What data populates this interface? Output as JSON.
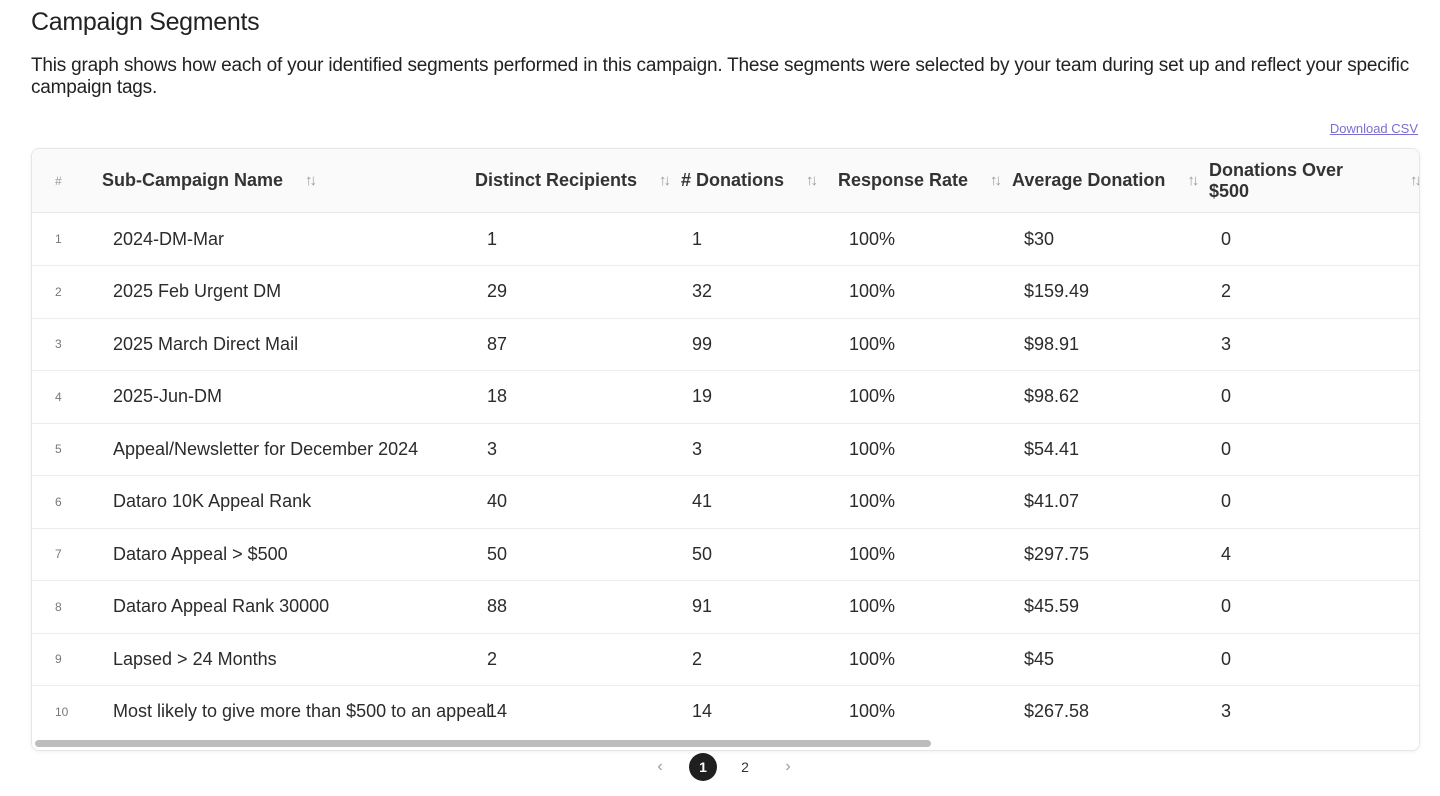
{
  "page": {
    "title": "Campaign Segments",
    "description": "This graph shows how each of your identified segments performed in this campaign. These segments were selected by your team during set up and reflect your specific campaign tags.",
    "download_label": "Download CSV"
  },
  "table": {
    "columns": [
      {
        "key": "index",
        "label": "#"
      },
      {
        "key": "name",
        "label": "Sub-Campaign Name"
      },
      {
        "key": "recipients",
        "label": "Distinct Recipients"
      },
      {
        "key": "donations",
        "label": "# Donations"
      },
      {
        "key": "response_rate",
        "label": "Response Rate"
      },
      {
        "key": "avg_donation",
        "label": "Average Donation"
      },
      {
        "key": "over_500",
        "label": "Donations Over $500"
      }
    ],
    "sort_icon": "sort-arrows-icon",
    "rows": [
      {
        "index": "1",
        "name": "2024-DM-Mar",
        "recipients": "1",
        "donations": "1",
        "response_rate": "100%",
        "avg_donation": "$30",
        "over_500": "0"
      },
      {
        "index": "2",
        "name": "2025 Feb Urgent DM",
        "recipients": "29",
        "donations": "32",
        "response_rate": "100%",
        "avg_donation": "$159.49",
        "over_500": "2"
      },
      {
        "index": "3",
        "name": "2025 March Direct Mail",
        "recipients": "87",
        "donations": "99",
        "response_rate": "100%",
        "avg_donation": "$98.91",
        "over_500": "3"
      },
      {
        "index": "4",
        "name": "2025-Jun-DM",
        "recipients": "18",
        "donations": "19",
        "response_rate": "100%",
        "avg_donation": "$98.62",
        "over_500": "0"
      },
      {
        "index": "5",
        "name": "Appeal/Newsletter for December 2024",
        "recipients": "3",
        "donations": "3",
        "response_rate": "100%",
        "avg_donation": "$54.41",
        "over_500": "0"
      },
      {
        "index": "6",
        "name": "Dataro 10K Appeal Rank",
        "recipients": "40",
        "donations": "41",
        "response_rate": "100%",
        "avg_donation": "$41.07",
        "over_500": "0"
      },
      {
        "index": "7",
        "name": "Dataro Appeal > $500",
        "recipients": "50",
        "donations": "50",
        "response_rate": "100%",
        "avg_donation": "$297.75",
        "over_500": "4"
      },
      {
        "index": "8",
        "name": "Dataro Appeal Rank 30000",
        "recipients": "88",
        "donations": "91",
        "response_rate": "100%",
        "avg_donation": "$45.59",
        "over_500": "0"
      },
      {
        "index": "9",
        "name": "Lapsed > 24 Months",
        "recipients": "2",
        "donations": "2",
        "response_rate": "100%",
        "avg_donation": "$45",
        "over_500": "0"
      },
      {
        "index": "10",
        "name": "Most likely to give more than $500 to an appeal",
        "recipients": "14",
        "donations": "14",
        "response_rate": "100%",
        "avg_donation": "$267.58",
        "over_500": "3"
      }
    ]
  },
  "pagination": {
    "prev_icon": "chevron-left-icon",
    "next_icon": "chevron-right-icon",
    "pages": [
      "1",
      "2"
    ],
    "current_page": "1"
  },
  "colors": {
    "link": "#7a6fd1",
    "active_page": "#1f1f1f"
  }
}
